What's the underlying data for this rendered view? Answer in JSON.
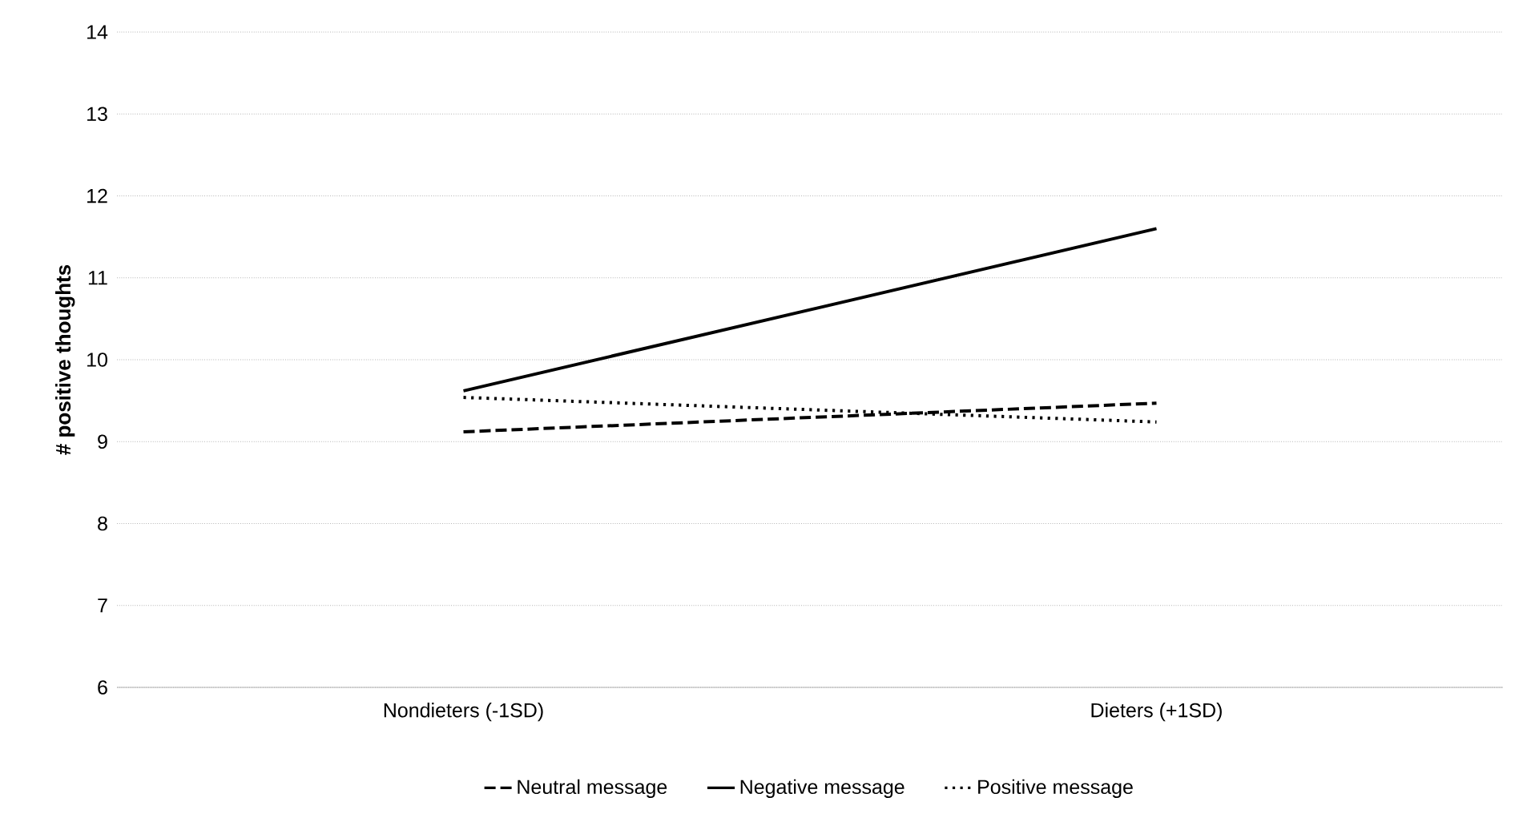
{
  "chart_data": {
    "type": "line",
    "ylabel": "# positive thoughts",
    "categories": [
      "Nondieters (-1SD)",
      "Dieters (+1SD)"
    ],
    "series": [
      {
        "name": "Neutral message",
        "color": "#000000",
        "line_style": "dashed",
        "values": [
          9.12,
          9.47
        ]
      },
      {
        "name": "Negative message",
        "color": "#000000",
        "line_style": "solid",
        "values": [
          9.62,
          11.6
        ]
      },
      {
        "name": "Positive message",
        "color": "#000000",
        "line_style": "dotted",
        "values": [
          9.54,
          9.24
        ]
      }
    ],
    "ylim": [
      6,
      14
    ],
    "yticks": [
      6,
      7,
      8,
      9,
      10,
      11,
      12,
      13,
      14
    ],
    "grid": "y",
    "legend": "bottom",
    "marker": "none"
  }
}
